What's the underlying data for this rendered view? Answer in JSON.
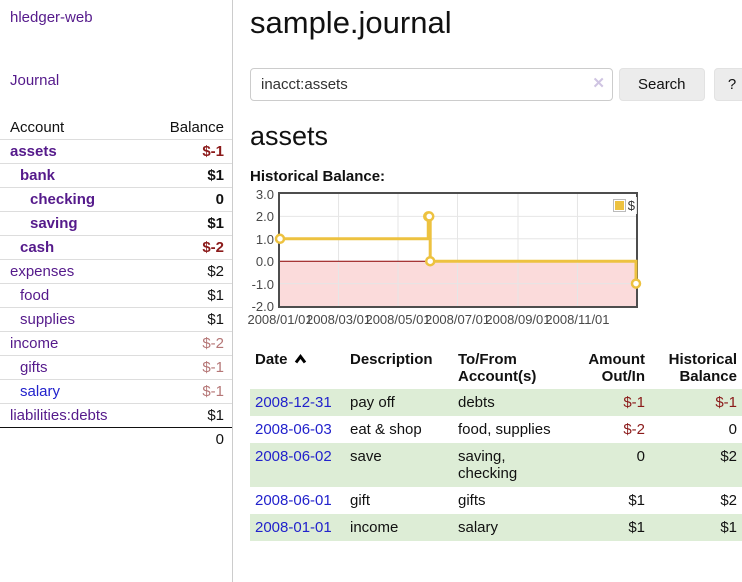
{
  "brand": "hledger-web",
  "nav": {
    "journal": "Journal"
  },
  "sidebar": {
    "headers": {
      "account": "Account",
      "balance": "Balance"
    },
    "accounts": [
      {
        "name": "assets",
        "depth": 0,
        "bold": true,
        "balance": "$-1",
        "balance_neg": "strong"
      },
      {
        "name": "bank",
        "depth": 1,
        "bold": true,
        "balance": "$1"
      },
      {
        "name": "checking",
        "depth": 2,
        "bold": true,
        "balance": "0"
      },
      {
        "name": "saving",
        "depth": 2,
        "bold": true,
        "balance": "$1"
      },
      {
        "name": "cash",
        "depth": 1,
        "bold": true,
        "balance": "$-2",
        "balance_neg": "strong"
      },
      {
        "name": "expenses",
        "depth": 0,
        "bold": false,
        "balance": "$2"
      },
      {
        "name": "food",
        "depth": 1,
        "bold": false,
        "balance": "$1"
      },
      {
        "name": "supplies",
        "depth": 1,
        "bold": false,
        "balance": "$1"
      },
      {
        "name": "income",
        "depth": 0,
        "bold": false,
        "balance": "$-2",
        "balance_neg": "soft"
      },
      {
        "name": "gifts",
        "depth": 1,
        "bold": false,
        "balance": "$-1",
        "balance_neg": "soft"
      },
      {
        "name": "salary",
        "depth": 1,
        "bold": false,
        "balance": "$-1",
        "balance_neg": "soft",
        "unvisited": true
      },
      {
        "name": "liabilities:debts",
        "depth": 0,
        "bold": false,
        "balance": "$1"
      }
    ],
    "total": "0"
  },
  "header": {
    "title": "sample.journal"
  },
  "search": {
    "value": "inacct:assets",
    "clear_label": "✕",
    "search_button": "Search",
    "help_button": "?"
  },
  "account_page": {
    "heading": "assets",
    "chart_title": "Historical Balance:"
  },
  "chart_data": {
    "type": "line",
    "step": true,
    "title": "Historical Balance",
    "xlabel": "",
    "ylabel": "",
    "xlim": [
      "2008-01-01",
      "2008-12-31"
    ],
    "ylim": [
      -2.0,
      3.0
    ],
    "grid": true,
    "legend_position": "top-right",
    "series": [
      {
        "name": "$",
        "color": "#edc240",
        "points": [
          [
            "2008-01-01",
            1
          ],
          [
            "2008-06-01",
            2
          ],
          [
            "2008-06-02",
            2
          ],
          [
            "2008-06-03",
            0
          ],
          [
            "2008-12-31",
            -1
          ]
        ]
      }
    ],
    "yticks": [
      {
        "label": "3.0",
        "value": 3
      },
      {
        "label": "2.0",
        "value": 2
      },
      {
        "label": "1.0",
        "value": 1
      },
      {
        "label": "0.0",
        "value": 0
      },
      {
        "label": "-1.0",
        "value": -1
      },
      {
        "label": "-2.0",
        "value": -2
      }
    ],
    "xticks": [
      {
        "label": "2008/01/01",
        "date": "2008-01-01"
      },
      {
        "label": "2008/03/01",
        "date": "2008-03-01"
      },
      {
        "label": "2008/05/01",
        "date": "2008-05-01"
      },
      {
        "label": "2008/07/01",
        "date": "2008-07-01"
      },
      {
        "label": "2008/09/01",
        "date": "2008-09-01"
      },
      {
        "label": "2008/11/01",
        "date": "2008-11-01"
      }
    ],
    "colors": {
      "line": "#edc240",
      "marker_fill": "#ffffff",
      "negative_region_fill": "#fbdbdb",
      "zero_line": "#8b0000",
      "gridline": "#e6e6e6",
      "plot_border": "#4d4d4d"
    }
  },
  "register_table": {
    "headers": {
      "date": "Date",
      "description": "Description",
      "accounts": "To/From Account(s)",
      "amount": "Amount Out/In",
      "balance": "Historical Balance"
    },
    "rows": [
      {
        "date": "2008-12-31",
        "description": "pay off",
        "accounts": "debts",
        "amount": "$-1",
        "amount_neg": true,
        "balance": "$-1",
        "balance_neg": true
      },
      {
        "date": "2008-06-03",
        "description": "eat & shop",
        "accounts": "food, supplies",
        "amount": "$-2",
        "amount_neg": true,
        "balance": "0",
        "balance_neg": false
      },
      {
        "date": "2008-06-02",
        "description": "save",
        "accounts": "saving, checking",
        "amount": "0",
        "amount_neg": false,
        "balance": "$2",
        "balance_neg": false
      },
      {
        "date": "2008-06-01",
        "description": "gift",
        "accounts": "gifts",
        "amount": "$1",
        "amount_neg": false,
        "balance": "$2",
        "balance_neg": false
      },
      {
        "date": "2008-01-01",
        "description": "income",
        "accounts": "salary",
        "amount": "$1",
        "amount_neg": false,
        "balance": "$1",
        "balance_neg": false
      }
    ]
  },
  "ui_colors": {
    "link_purple": "#551a8b",
    "link_blue": "#2222cc",
    "negative_strong": "#8b1a1a",
    "negative_soft": "#b57676",
    "row_stripe_green": "#ddedd6"
  }
}
